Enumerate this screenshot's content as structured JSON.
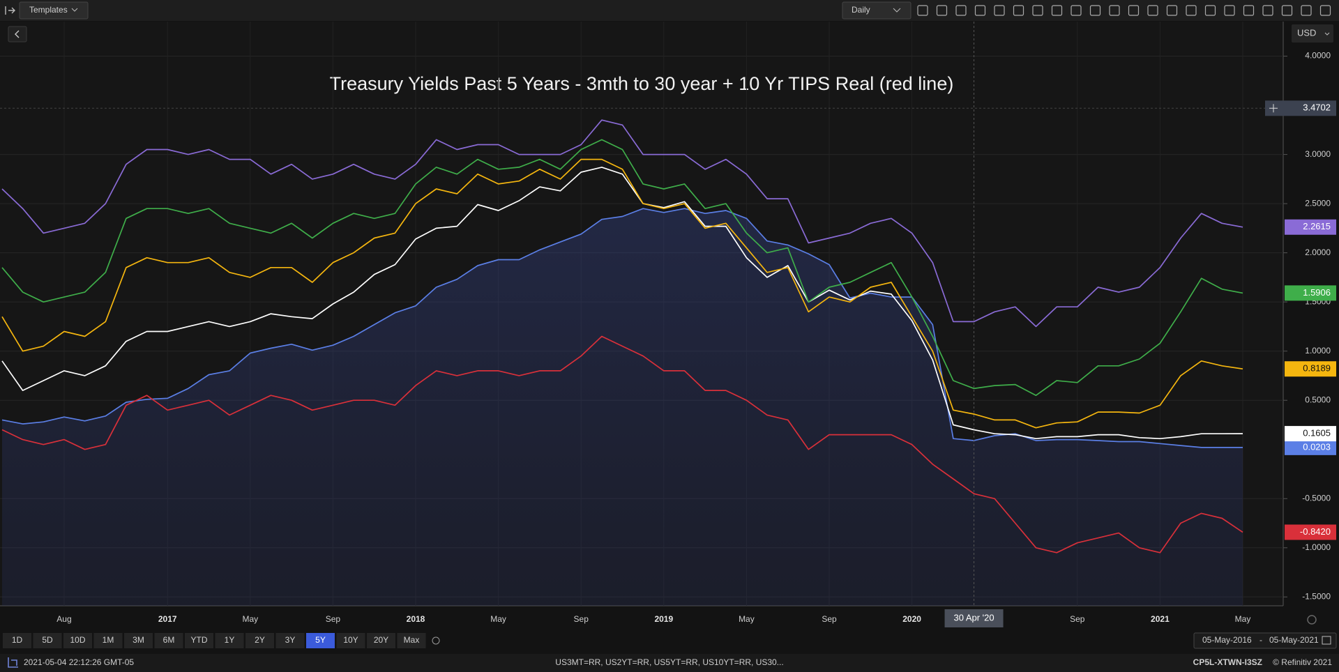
{
  "toolbar": {
    "templates": "Templates",
    "interval": "Daily",
    "currency": "USD"
  },
  "chart_data": {
    "type": "line",
    "title": "Treasury Yields Past 5 Years - 3mth to 30 year + 10 Yr TIPS Real (red line)",
    "x": [
      "2016-05",
      "2016-06",
      "2016-07",
      "2016-08",
      "2016-09",
      "2016-10",
      "2016-11",
      "2016-12",
      "2017-01",
      "2017-02",
      "2017-03",
      "2017-04",
      "2017-05",
      "2017-06",
      "2017-07",
      "2017-08",
      "2017-09",
      "2017-10",
      "2017-11",
      "2017-12",
      "2018-01",
      "2018-02",
      "2018-03",
      "2018-04",
      "2018-05",
      "2018-06",
      "2018-07",
      "2018-08",
      "2018-09",
      "2018-10",
      "2018-11",
      "2018-12",
      "2019-01",
      "2019-02",
      "2019-03",
      "2019-04",
      "2019-05",
      "2019-06",
      "2019-07",
      "2019-08",
      "2019-09",
      "2019-10",
      "2019-11",
      "2019-12",
      "2020-01",
      "2020-02",
      "2020-03",
      "2020-04",
      "2020-05",
      "2020-06",
      "2020-07",
      "2020-08",
      "2020-09",
      "2020-10",
      "2020-11",
      "2020-12",
      "2021-01",
      "2021-02",
      "2021-03",
      "2021-04",
      "2021-05"
    ],
    "series": [
      {
        "color": "#5b7fe6",
        "area": true,
        "label_text_color": "#ffffff",
        "last_label": "0.0203",
        "values": [
          0.3,
          0.26,
          0.28,
          0.33,
          0.29,
          0.34,
          0.48,
          0.51,
          0.52,
          0.62,
          0.76,
          0.8,
          0.98,
          1.03,
          1.07,
          1.01,
          1.06,
          1.15,
          1.27,
          1.39,
          1.46,
          1.65,
          1.73,
          1.87,
          1.93,
          1.93,
          2.03,
          2.11,
          2.19,
          2.34,
          2.37,
          2.45,
          2.41,
          2.45,
          2.4,
          2.43,
          2.35,
          2.12,
          2.08,
          1.99,
          1.88,
          1.54,
          1.59,
          1.55,
          1.55,
          1.27,
          0.11,
          0.09,
          0.14,
          0.16,
          0.09,
          0.1,
          0.1,
          0.09,
          0.08,
          0.08,
          0.06,
          0.04,
          0.02,
          0.02,
          0.0203
        ]
      },
      {
        "color": "#ffffff",
        "label_text_color": "#111111",
        "last_label": "0.1605",
        "values": [
          0.9,
          0.6,
          0.7,
          0.8,
          0.75,
          0.85,
          1.1,
          1.2,
          1.2,
          1.25,
          1.3,
          1.25,
          1.3,
          1.38,
          1.35,
          1.33,
          1.48,
          1.6,
          1.78,
          1.88,
          2.14,
          2.25,
          2.27,
          2.49,
          2.43,
          2.53,
          2.67,
          2.63,
          2.82,
          2.87,
          2.8,
          2.5,
          2.46,
          2.52,
          2.27,
          2.27,
          1.95,
          1.75,
          1.87,
          1.5,
          1.62,
          1.52,
          1.61,
          1.58,
          1.31,
          0.91,
          0.25,
          0.2,
          0.16,
          0.15,
          0.11,
          0.13,
          0.13,
          0.15,
          0.15,
          0.12,
          0.11,
          0.13,
          0.16,
          0.16,
          0.1605
        ]
      },
      {
        "color": "#f5b60f",
        "label_text_color": "#111111",
        "last_label": "0.8189",
        "values": [
          1.35,
          1.0,
          1.05,
          1.2,
          1.15,
          1.3,
          1.85,
          1.95,
          1.9,
          1.9,
          1.95,
          1.8,
          1.75,
          1.85,
          1.85,
          1.7,
          1.9,
          2.0,
          2.15,
          2.2,
          2.5,
          2.65,
          2.6,
          2.8,
          2.7,
          2.73,
          2.85,
          2.75,
          2.95,
          2.95,
          2.85,
          2.5,
          2.45,
          2.5,
          2.25,
          2.3,
          2.05,
          1.8,
          1.85,
          1.4,
          1.55,
          1.5,
          1.65,
          1.7,
          1.35,
          1.0,
          0.4,
          0.36,
          0.3,
          0.3,
          0.22,
          0.27,
          0.28,
          0.38,
          0.38,
          0.37,
          0.45,
          0.75,
          0.9,
          0.85,
          0.8189
        ]
      },
      {
        "color": "#3fae4a",
        "label_text_color": "#ffffff",
        "last_label": "1.5906",
        "values": [
          1.85,
          1.6,
          1.5,
          1.55,
          1.6,
          1.8,
          2.35,
          2.45,
          2.45,
          2.4,
          2.45,
          2.3,
          2.25,
          2.2,
          2.3,
          2.15,
          2.3,
          2.4,
          2.35,
          2.4,
          2.7,
          2.87,
          2.8,
          2.95,
          2.85,
          2.87,
          2.95,
          2.85,
          3.05,
          3.15,
          3.05,
          2.7,
          2.65,
          2.7,
          2.45,
          2.5,
          2.2,
          2.0,
          2.05,
          1.5,
          1.65,
          1.7,
          1.8,
          1.9,
          1.55,
          1.15,
          0.7,
          0.62,
          0.65,
          0.66,
          0.55,
          0.7,
          0.68,
          0.85,
          0.85,
          0.92,
          1.08,
          1.4,
          1.74,
          1.63,
          1.5906
        ]
      },
      {
        "color": "#8a6bd6",
        "label_text_color": "#ffffff",
        "last_label": "2.2615",
        "values": [
          2.65,
          2.45,
          2.2,
          2.25,
          2.3,
          2.5,
          2.9,
          3.05,
          3.05,
          3.0,
          3.05,
          2.95,
          2.95,
          2.8,
          2.9,
          2.75,
          2.8,
          2.9,
          2.8,
          2.75,
          2.9,
          3.15,
          3.05,
          3.1,
          3.1,
          3.0,
          3.0,
          3.0,
          3.1,
          3.35,
          3.3,
          3.0,
          3.0,
          3.0,
          2.85,
          2.95,
          2.8,
          2.55,
          2.55,
          2.1,
          2.15,
          2.2,
          2.3,
          2.35,
          2.2,
          1.9,
          1.3,
          1.3,
          1.4,
          1.45,
          1.25,
          1.45,
          1.45,
          1.65,
          1.6,
          1.65,
          1.85,
          2.15,
          2.4,
          2.3,
          2.2615
        ]
      },
      {
        "color": "#d9303a",
        "label_text_color": "#ffffff",
        "last_label": "-0.8420",
        "values": [
          0.2,
          0.1,
          0.05,
          0.1,
          0.0,
          0.05,
          0.45,
          0.55,
          0.4,
          0.45,
          0.5,
          0.35,
          0.45,
          0.55,
          0.5,
          0.4,
          0.45,
          0.5,
          0.5,
          0.45,
          0.65,
          0.8,
          0.75,
          0.8,
          0.8,
          0.75,
          0.8,
          0.8,
          0.95,
          1.15,
          1.05,
          0.95,
          0.8,
          0.8,
          0.6,
          0.6,
          0.5,
          0.35,
          0.3,
          0.0,
          0.15,
          0.15,
          0.15,
          0.15,
          0.05,
          -0.15,
          -0.3,
          -0.45,
          -0.5,
          -0.75,
          -1.0,
          -1.05,
          -0.95,
          -0.9,
          -0.85,
          -1.0,
          -1.05,
          -0.75,
          -0.65,
          -0.7,
          -0.842
        ]
      }
    ],
    "ylim": [
      -1.59,
      4.33
    ],
    "yticks": [
      {
        "value": 4,
        "label": "4.0000"
      },
      {
        "value": 3,
        "label": "3.0000"
      },
      {
        "value": 2.5,
        "label": "2.5000"
      },
      {
        "value": 2,
        "label": "2.0000"
      },
      {
        "value": 1.5,
        "label": "1.5000"
      },
      {
        "value": 1,
        "label": "1.0000"
      },
      {
        "value": 0.5,
        "label": "0.5000"
      },
      {
        "value": -0.5,
        "label": "-0.5000"
      },
      {
        "value": -1,
        "label": "-1.0000"
      },
      {
        "value": -1.5,
        "label": "-1.5000"
      }
    ],
    "xticks": [
      {
        "value": "2016-08",
        "label": "Aug"
      },
      {
        "value": "2017-01",
        "label": "2017"
      },
      {
        "value": "2017-05",
        "label": "May"
      },
      {
        "value": "2017-09",
        "label": "Sep"
      },
      {
        "value": "2018-01",
        "label": "2018"
      },
      {
        "value": "2018-05",
        "label": "May"
      },
      {
        "value": "2018-09",
        "label": "Sep"
      },
      {
        "value": "2019-01",
        "label": "2019"
      },
      {
        "value": "2019-05",
        "label": "May"
      },
      {
        "value": "2019-09",
        "label": "Sep"
      },
      {
        "value": "2020-01",
        "label": "2020"
      },
      {
        "value": "2020-09",
        "label": "Sep"
      },
      {
        "value": "2021-01",
        "label": "2021"
      },
      {
        "value": "2021-05",
        "label": "May"
      }
    ],
    "grid": true,
    "crosshair": {
      "x": "2020-04",
      "x_label": "30 Apr '20",
      "y": 3.4702
    }
  },
  "range_buttons": [
    "1D",
    "5D",
    "10D",
    "1M",
    "3M",
    "6M",
    "YTD",
    "1Y",
    "2Y",
    "3Y",
    "5Y",
    "10Y",
    "20Y",
    "Max"
  ],
  "active_range": 10,
  "date_range": {
    "from": "05-May-2016",
    "separator": "-",
    "to": "05-May-2021"
  },
  "status": {
    "timestamp": "2021-05-04 22:12:26 GMT-05",
    "instruments": "US3MT=RR, US2YT=RR, US5YT=RR, US10YT=RR, US30...",
    "session": "CP5L-XTWN-I3SZ",
    "copyright": "© Refinitiv 2021"
  }
}
